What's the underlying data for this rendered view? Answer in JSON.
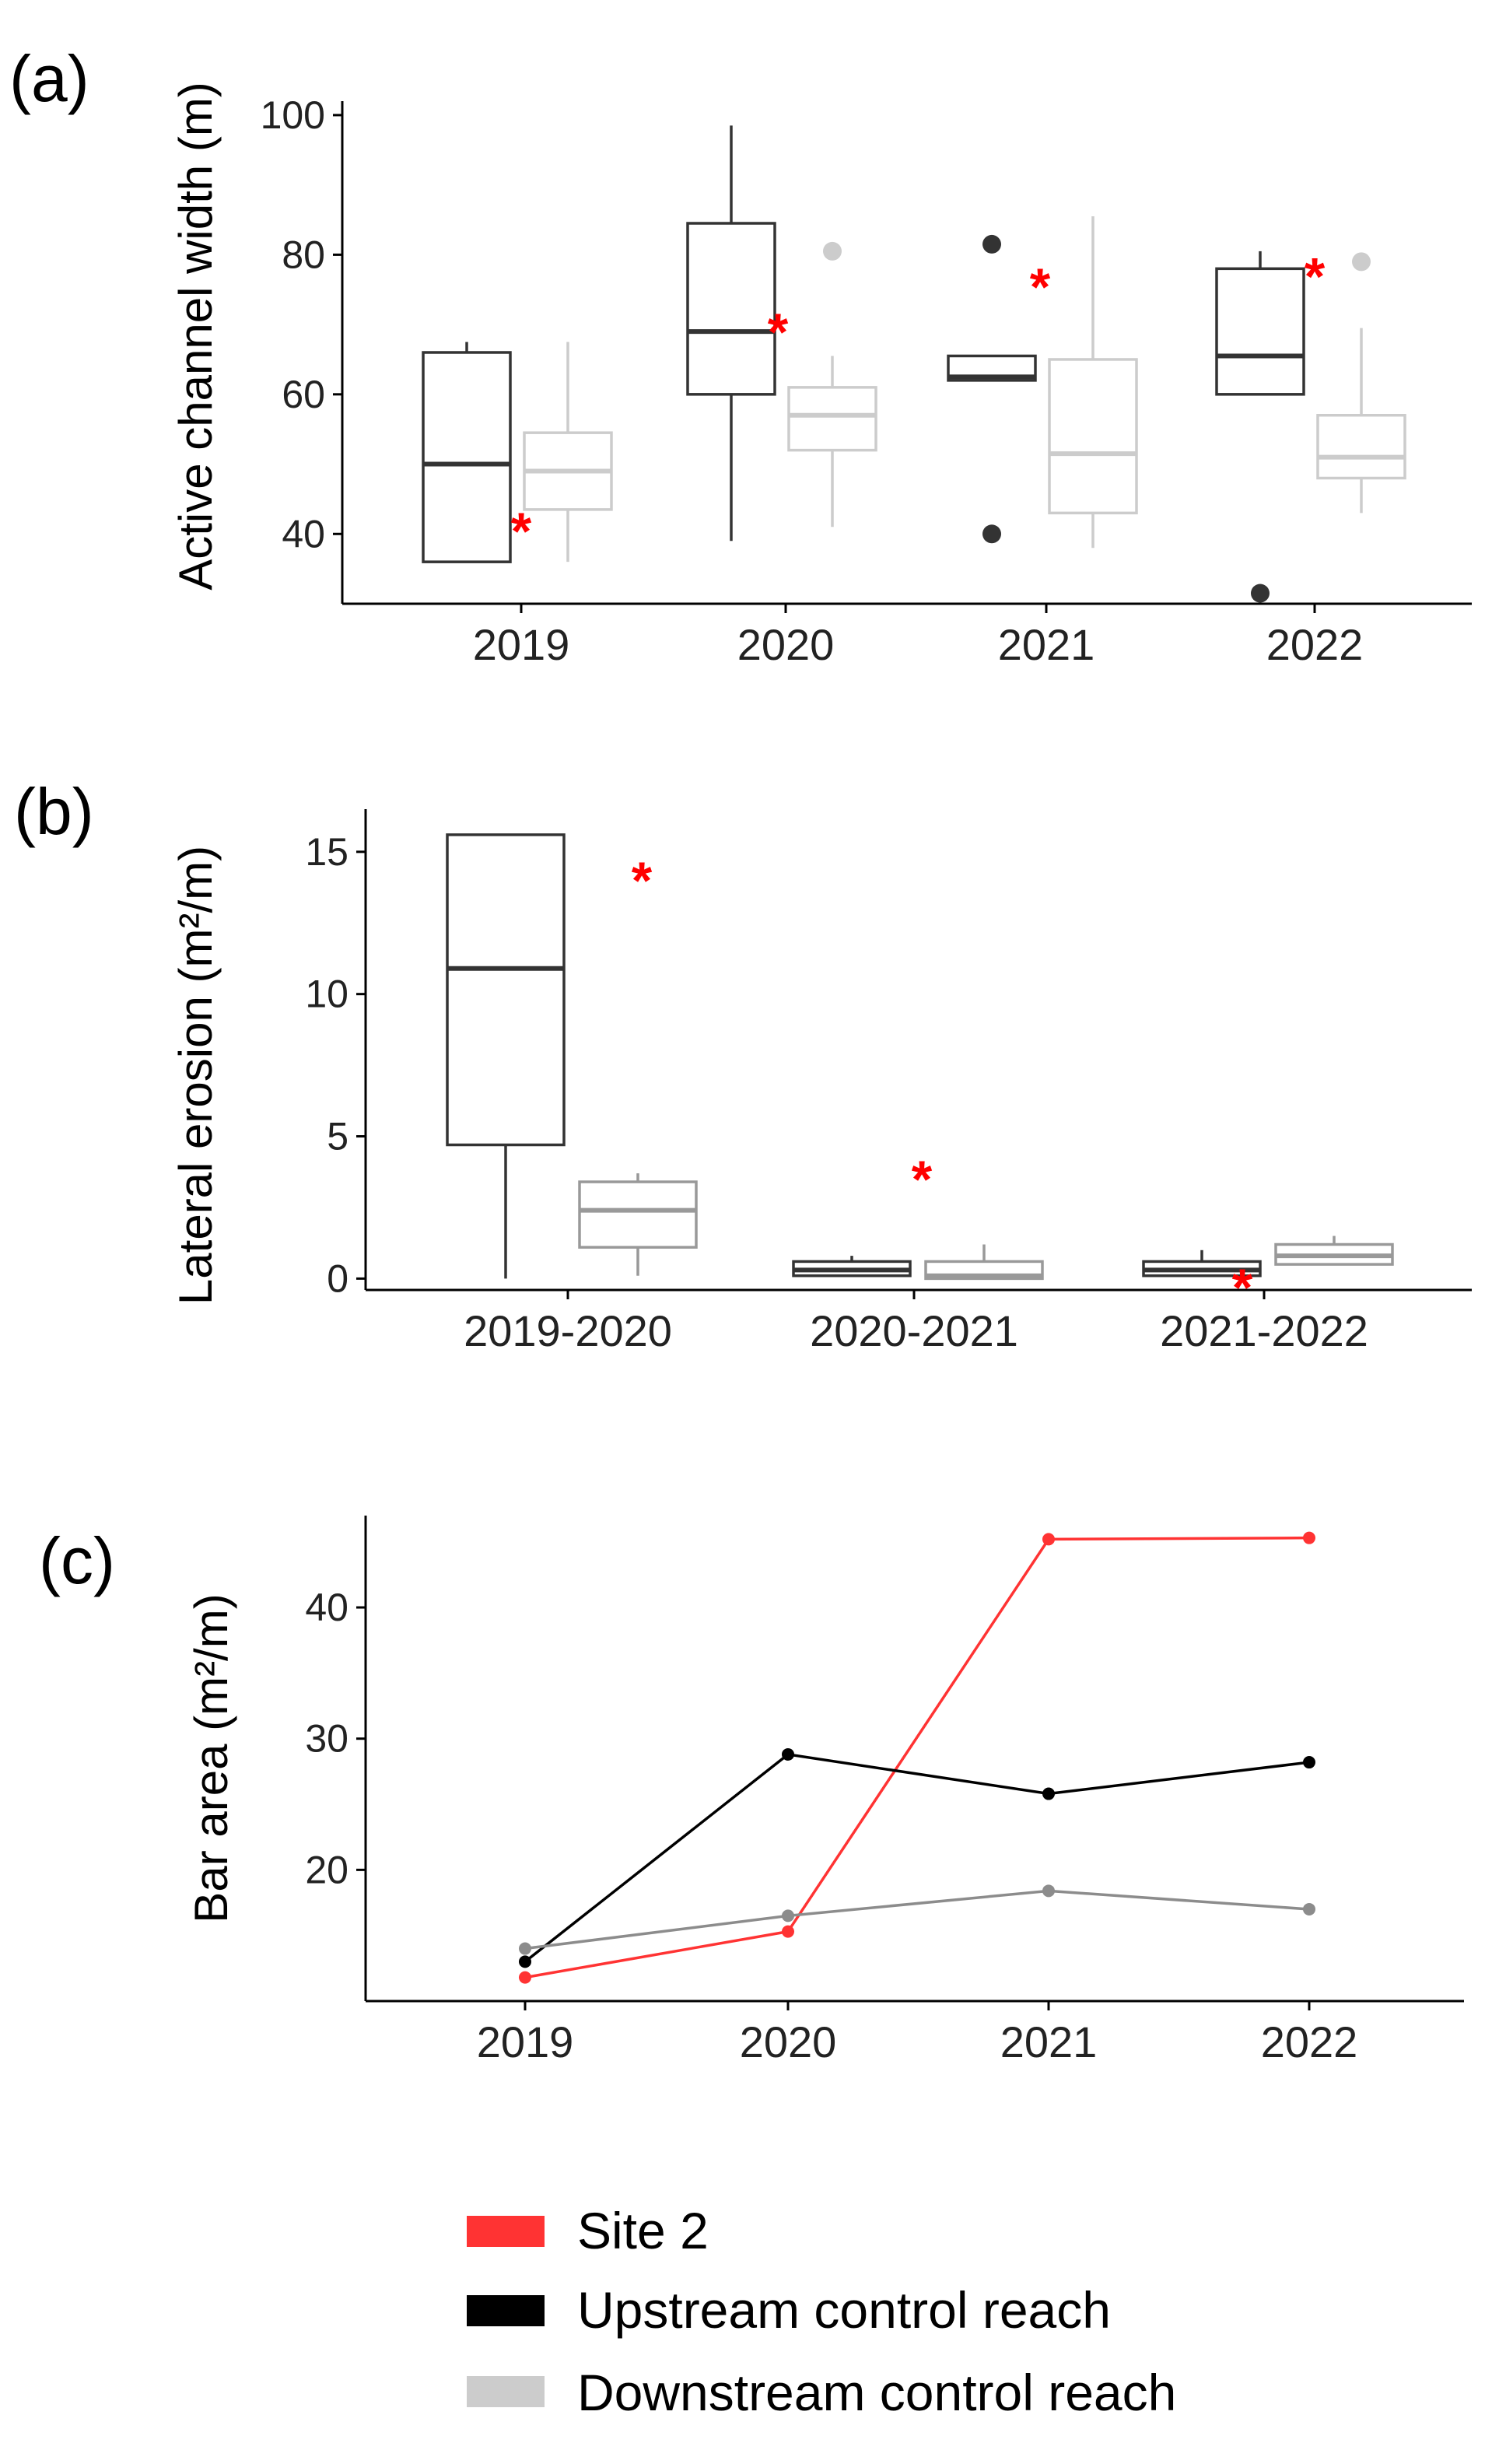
{
  "chart_data": [
    {
      "panel_label": "(a)",
      "type": "box",
      "title": "",
      "xlabel": "",
      "ylabel": "Active channel width (m)",
      "ylim": [
        30,
        102
      ],
      "yticks": [
        40,
        60,
        80,
        100
      ],
      "categories": [
        "2019",
        "2020",
        "2021",
        "2022"
      ],
      "series": [
        {
          "name": "Upstream control reach",
          "color": "#333333",
          "boxes": [
            {
              "min": 36,
              "q1": 36,
              "median": 50,
              "q3": 66,
              "max": 67.5,
              "outliers": []
            },
            {
              "min": 39,
              "q1": 60,
              "median": 69,
              "q3": 84.5,
              "max": 98.5,
              "outliers": []
            },
            {
              "min": 62,
              "q1": 62,
              "median": 62.5,
              "q3": 65.5,
              "max": 65.5,
              "outliers": [
                81.5,
                40
              ]
            },
            {
              "min": 60,
              "q1": 60,
              "median": 65.5,
              "q3": 78,
              "max": 80.5,
              "outliers": [
                31.5
              ]
            }
          ]
        },
        {
          "name": "Downstream control reach",
          "color": "#cccccc",
          "boxes": [
            {
              "min": 36,
              "q1": 43.5,
              "median": 49,
              "q3": 54.5,
              "max": 67.5,
              "outliers": []
            },
            {
              "min": 41,
              "q1": 52,
              "median": 57,
              "q3": 61,
              "max": 65.5,
              "outliers": [
                80.5
              ]
            },
            {
              "min": 38,
              "q1": 43,
              "median": 51.5,
              "q3": 65,
              "max": 85.5,
              "outliers": []
            },
            {
              "min": 43,
              "q1": 48,
              "median": 51,
              "q3": 57,
              "max": 69.5,
              "outliers": [
                79
              ]
            }
          ]
        }
      ],
      "site2_markers": [
        {
          "category": "2019",
          "value": 42.5
        },
        {
          "category": "2020",
          "value": 71
        },
        {
          "category": "2021",
          "value": 77.5
        },
        {
          "category": "2022",
          "value": 79
        }
      ],
      "marker_symbol": "*"
    },
    {
      "panel_label": "(b)",
      "type": "box",
      "title": "",
      "xlabel": "",
      "ylabel": "Lateral erosion (m²/m)",
      "ylim": [
        -0.4,
        16.5
      ],
      "yticks": [
        0,
        5,
        10,
        15
      ],
      "categories": [
        "2019-2020",
        "2020-2021",
        "2021-2022"
      ],
      "series": [
        {
          "name": "Upstream control reach",
          "color": "#333333",
          "boxes": [
            {
              "min": 0,
              "q1": 4.7,
              "median": 10.9,
              "q3": 15.6,
              "max": 15.6,
              "outliers": []
            },
            {
              "min": 0.1,
              "q1": 0.1,
              "median": 0.3,
              "q3": 0.6,
              "max": 0.8,
              "outliers": []
            },
            {
              "min": 0.1,
              "q1": 0.1,
              "median": 0.3,
              "q3": 0.6,
              "max": 1.0,
              "outliers": []
            }
          ]
        },
        {
          "name": "Downstream control reach",
          "color": "#999999",
          "boxes": [
            {
              "min": 0.1,
              "q1": 1.1,
              "median": 2.4,
              "q3": 3.4,
              "max": 3.7,
              "outliers": []
            },
            {
              "min": 0,
              "q1": 0,
              "median": 0.1,
              "q3": 0.6,
              "max": 1.2,
              "outliers": []
            },
            {
              "min": 0.5,
              "q1": 0.5,
              "median": 0.8,
              "q3": 1.2,
              "max": 1.5,
              "outliers": []
            }
          ]
        }
      ],
      "site2_markers": [
        {
          "category": "2019-2020",
          "value": 14.5
        },
        {
          "category": "2020-2021",
          "value": 4.0
        },
        {
          "category": "2021-2022",
          "value": 0.2
        }
      ],
      "marker_symbol": "*"
    },
    {
      "panel_label": "(c)",
      "type": "line",
      "title": "",
      "xlabel": "",
      "ylabel": "Bar area (m²/m)",
      "ylim": [
        10,
        47
      ],
      "yticks": [
        20,
        30,
        40
      ],
      "x": [
        "2019",
        "2020",
        "2021",
        "2022"
      ],
      "series": [
        {
          "name": "Site 2",
          "color": "#ff3333",
          "values": [
            11.8,
            15.3,
            45.2,
            45.3
          ]
        },
        {
          "name": "Upstream control reach",
          "color": "#000000",
          "values": [
            13.0,
            28.8,
            25.8,
            28.2
          ]
        },
        {
          "name": "Downstream control reach",
          "color": "#8c8c8c",
          "values": [
            14.0,
            16.5,
            18.4,
            17.0
          ]
        }
      ]
    }
  ],
  "legend": {
    "placement": "bottom",
    "items": [
      {
        "label": "Site 2",
        "color": "#ff3333"
      },
      {
        "label": "Upstream control reach",
        "color": "#000000"
      },
      {
        "label": "Downstream control reach",
        "color": "#cccccc"
      }
    ]
  },
  "marker_color": "#ff0000"
}
